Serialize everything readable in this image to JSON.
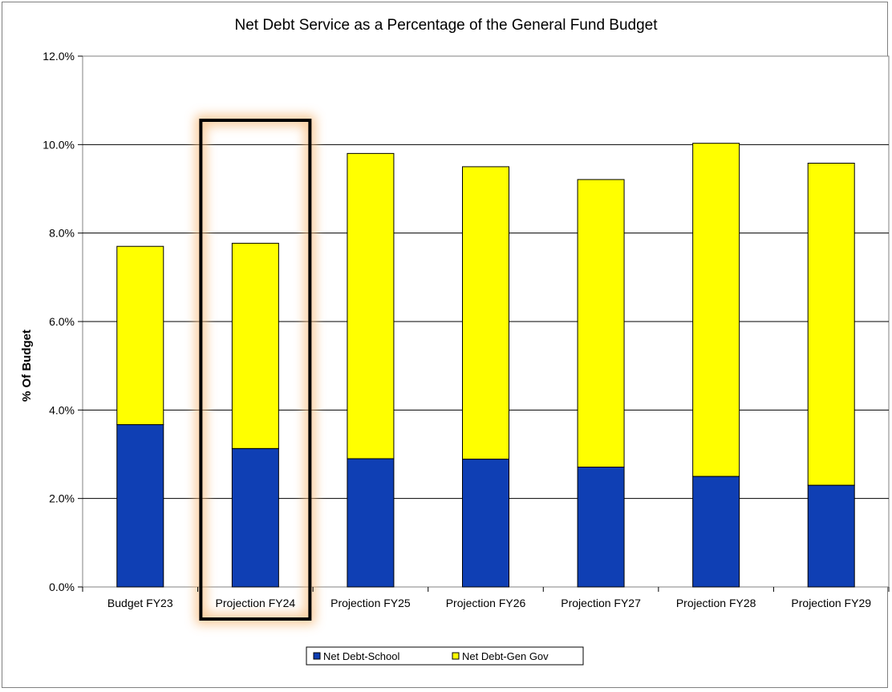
{
  "chart_data": {
    "type": "bar",
    "stacked": true,
    "title": "Net Debt Service as a Percentage of the General Fund Budget",
    "xlabel": "",
    "ylabel": "% Of Budget",
    "ylim": [
      0,
      12
    ],
    "y_ticks": [
      0,
      2,
      4,
      6,
      8,
      10,
      12
    ],
    "y_tick_labels": [
      "0.0%",
      "2.0%",
      "4.0%",
      "6.0%",
      "8.0%",
      "10.0%",
      "12.0%"
    ],
    "grid": true,
    "legend_position": "bottom",
    "categories": [
      "Budget FY23",
      "Projection FY24",
      "Projection FY25",
      "Projection FY26",
      "Projection FY27",
      "Projection FY28",
      "Projection FY29"
    ],
    "series": [
      {
        "name": "Net Debt-School",
        "color": "#0f3fb4",
        "values": [
          3.67,
          3.13,
          2.9,
          2.89,
          2.71,
          2.5,
          2.3
        ]
      },
      {
        "name": "Net Debt-Gen Gov",
        "color": "#ffff00",
        "values": [
          4.03,
          4.64,
          6.9,
          6.61,
          6.5,
          7.53,
          7.28
        ]
      }
    ],
    "highlighted_category": "Projection FY24"
  }
}
